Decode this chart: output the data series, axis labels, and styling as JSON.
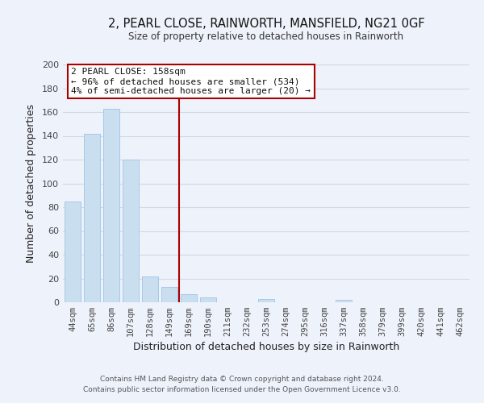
{
  "title": "2, PEARL CLOSE, RAINWORTH, MANSFIELD, NG21 0GF",
  "subtitle": "Size of property relative to detached houses in Rainworth",
  "xlabel": "Distribution of detached houses by size in Rainworth",
  "ylabel": "Number of detached properties",
  "bar_color": "#c9dff0",
  "bar_edge_color": "#a8c8e8",
  "categories": [
    "44sqm",
    "65sqm",
    "86sqm",
    "107sqm",
    "128sqm",
    "149sqm",
    "169sqm",
    "190sqm",
    "211sqm",
    "232sqm",
    "253sqm",
    "274sqm",
    "295sqm",
    "316sqm",
    "337sqm",
    "358sqm",
    "379sqm",
    "399sqm",
    "420sqm",
    "441sqm",
    "462sqm"
  ],
  "values": [
    85,
    142,
    163,
    120,
    22,
    13,
    7,
    4,
    0,
    0,
    3,
    0,
    0,
    0,
    2,
    0,
    0,
    0,
    0,
    0,
    0
  ],
  "vline_x": 5.5,
  "vline_color": "#aa0000",
  "ylim": [
    0,
    200
  ],
  "yticks": [
    0,
    20,
    40,
    60,
    80,
    100,
    120,
    140,
    160,
    180,
    200
  ],
  "annotation_title": "2 PEARL CLOSE: 158sqm",
  "annotation_line1": "← 96% of detached houses are smaller (534)",
  "annotation_line2": "4% of semi-detached houses are larger (20) →",
  "annotation_box_color": "#ffffff",
  "annotation_box_edge": "#aa0000",
  "footer1": "Contains HM Land Registry data © Crown copyright and database right 2024.",
  "footer2": "Contains public sector information licensed under the Open Government Licence v3.0.",
  "grid_color": "#d0d8e8",
  "background_color": "#eef2fa"
}
